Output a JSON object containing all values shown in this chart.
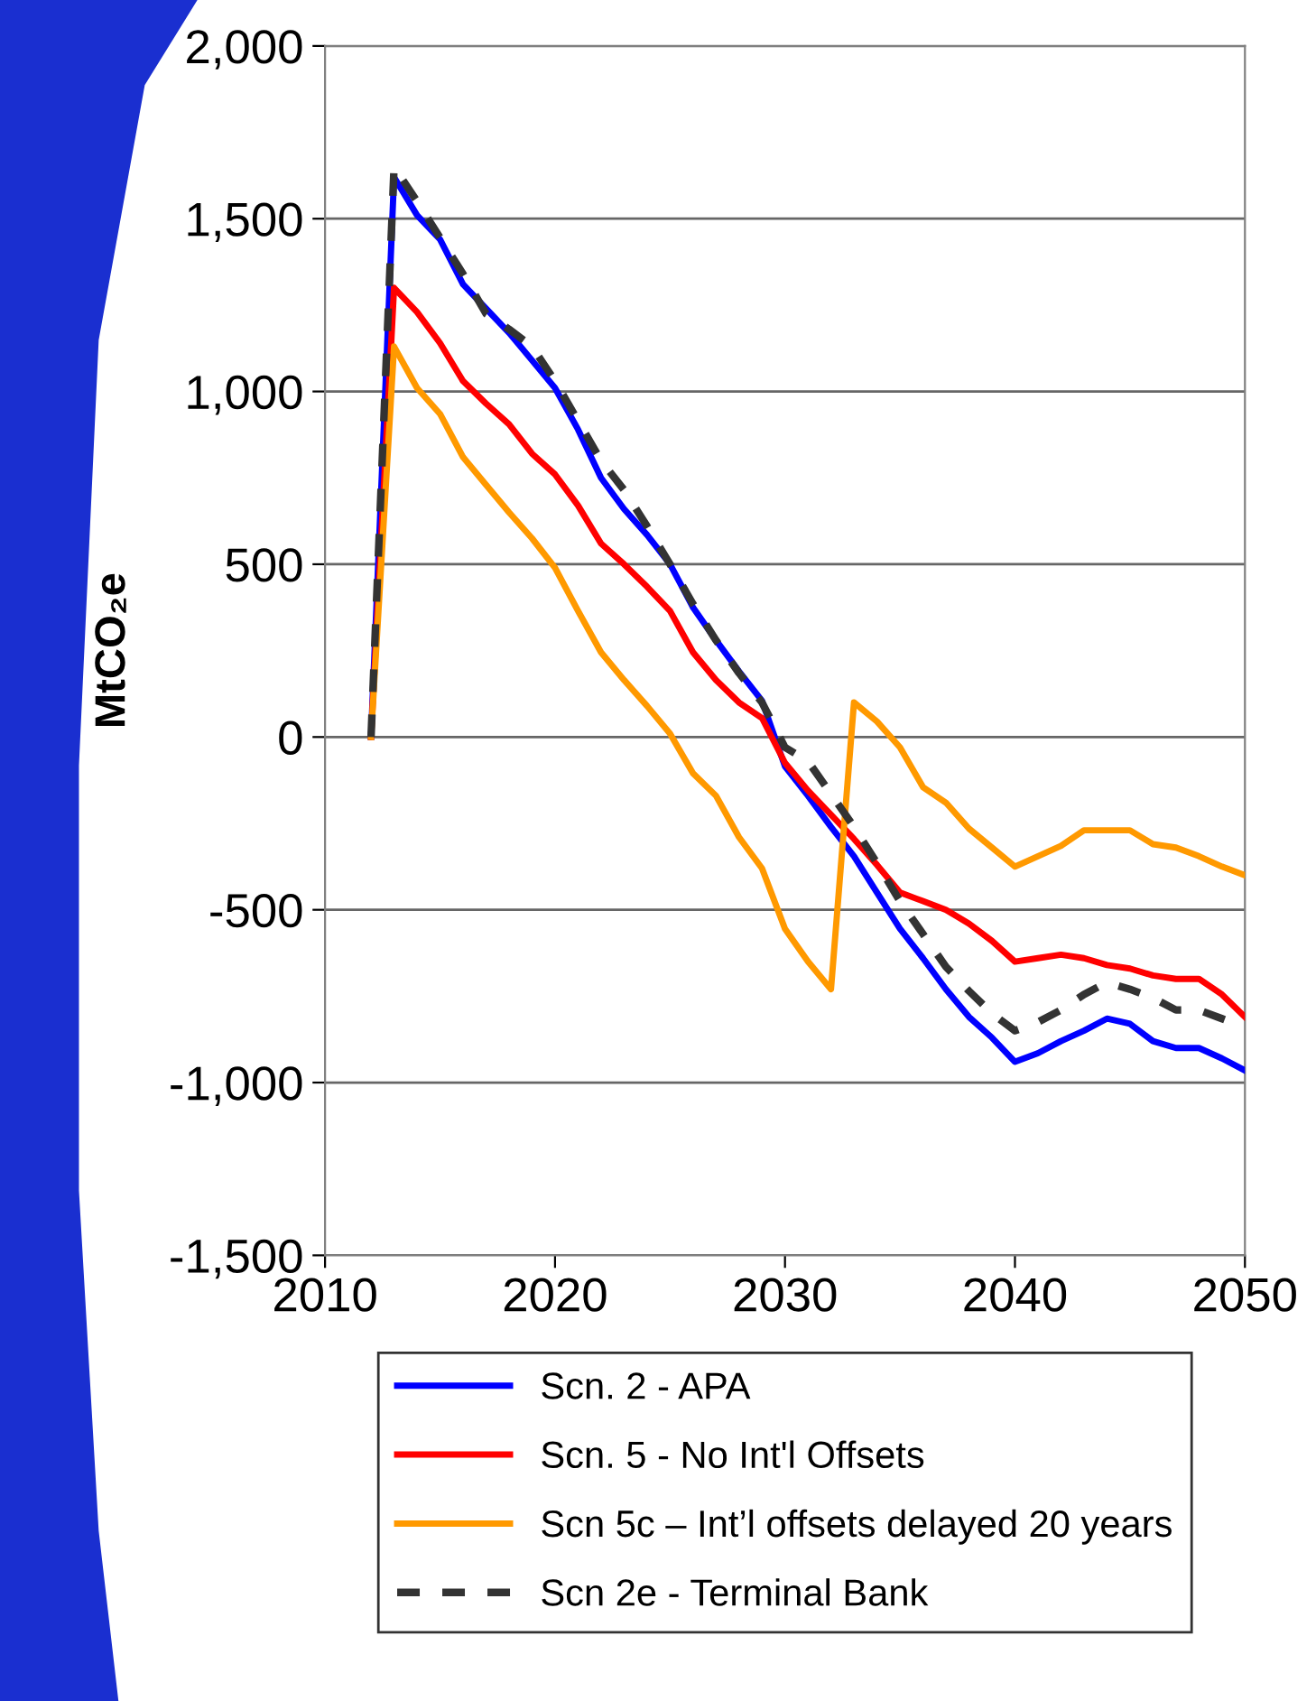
{
  "chart_data": {
    "type": "line",
    "ylabel": "MtCO₂e",
    "x": [
      2012,
      2013,
      2014,
      2015,
      2016,
      2017,
      2018,
      2019,
      2020,
      2021,
      2022,
      2023,
      2024,
      2025,
      2026,
      2027,
      2028,
      2029,
      2030,
      2031,
      2032,
      2033,
      2034,
      2035,
      2036,
      2037,
      2038,
      2039,
      2040,
      2041,
      2042,
      2043,
      2044,
      2045,
      2046,
      2047,
      2048,
      2049,
      2050
    ],
    "series": [
      {
        "name": "Scn. 2 - APA",
        "color": "#0000ff",
        "values": [
          0,
          1620,
          1510,
          1440,
          1310,
          1240,
          1170,
          1090,
          1010,
          890,
          750,
          660,
          585,
          500,
          375,
          280,
          190,
          105,
          -85,
          -170,
          -260,
          -345,
          -450,
          -555,
          -640,
          -730,
          -810,
          -870,
          -940,
          -915,
          -880,
          -850,
          -815,
          -830,
          -880,
          -900,
          -900,
          -930,
          -965
        ]
      },
      {
        "name": "Scn. 5 - No Int'l Offsets",
        "color": "#ff0000",
        "values": [
          0,
          1300,
          1230,
          1140,
          1030,
          965,
          905,
          820,
          760,
          670,
          560,
          500,
          435,
          365,
          245,
          165,
          100,
          55,
          -75,
          -155,
          -225,
          -295,
          -370,
          -450,
          -475,
          -500,
          -540,
          -590,
          -650,
          -640,
          -630,
          -640,
          -660,
          -670,
          -690,
          -700,
          -700,
          -745,
          -810
        ]
      },
      {
        "name": "Scn 5c – Int’l offsets delayed 20 years",
        "color": "#ff9900",
        "values": [
          0,
          1130,
          1010,
          935,
          810,
          730,
          650,
          575,
          490,
          365,
          245,
          165,
          90,
          10,
          -105,
          -170,
          -290,
          -380,
          -555,
          -650,
          -730,
          100,
          45,
          -30,
          -145,
          -190,
          -265,
          -320,
          -375,
          -345,
          -315,
          -270,
          -270,
          -270,
          -310,
          -320,
          -345,
          -375,
          -400
        ]
      },
      {
        "name": "Scn 2e - Terminal Bank",
        "color": "#333333",
        "line_style": "dashed",
        "values": [
          0,
          1650,
          1550,
          1445,
          1340,
          1225,
          1180,
          1130,
          1030,
          915,
          800,
          715,
          610,
          500,
          385,
          280,
          185,
          100,
          -30,
          -70,
          -165,
          -260,
          -365,
          -475,
          -570,
          -665,
          -735,
          -800,
          -850,
          -825,
          -790,
          -745,
          -710,
          -730,
          -755,
          -790,
          -790,
          -815,
          -840
        ]
      }
    ],
    "xlim": [
      2010,
      2050
    ],
    "xticks": [
      2010,
      2020,
      2030,
      2040,
      2050
    ],
    "ylim": [
      -1500,
      2000
    ],
    "yticks": [
      {
        "value": -1500,
        "label": "-1,500"
      },
      {
        "value": -1000,
        "label": "-1,000"
      },
      {
        "value": -500,
        "label": "-500"
      },
      0,
      500,
      {
        "value": 1000,
        "label": "1,000"
      },
      {
        "value": 1500,
        "label": "1,500"
      },
      {
        "value": 2000,
        "label": "2,000"
      }
    ],
    "grid": "y",
    "legend": "bottom",
    "line_style": "solid",
    "marker": "none"
  }
}
